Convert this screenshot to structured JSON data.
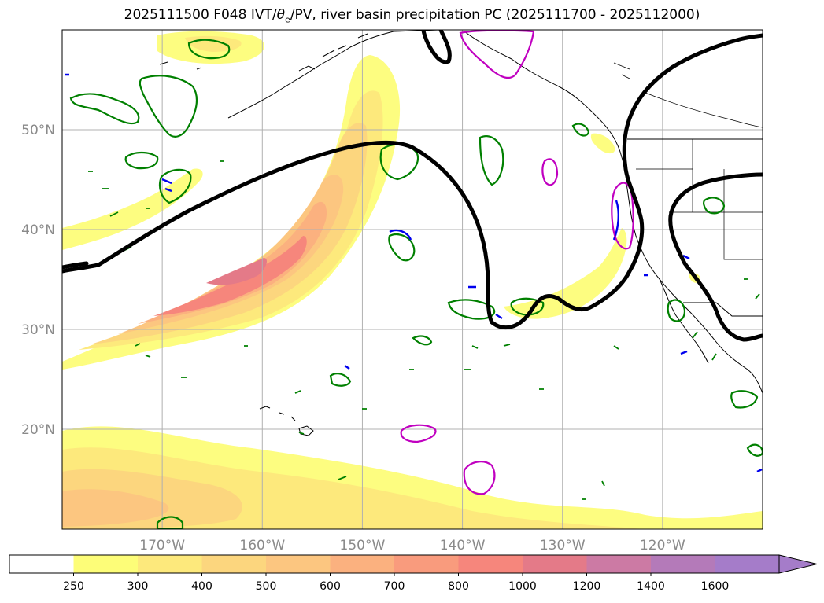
{
  "title": {
    "prefix": "2025111500 F048 IVT/",
    "theta": "θ",
    "theta_sub": "e",
    "suffix": "/PV, river basin precipitation PC (2025111700 - 2025112000)"
  },
  "map": {
    "lon_range": [
      -180,
      -110
    ],
    "lat_range": [
      10,
      60
    ],
    "lon_ticks": [
      -170,
      -160,
      -150,
      -140,
      -130,
      -120
    ],
    "lon_labels": [
      "170°W",
      "160°W",
      "150°W",
      "140°W",
      "130°W",
      "120°W"
    ],
    "lat_ticks": [
      20,
      30,
      40,
      50
    ],
    "lat_labels": [
      "20°N",
      "30°N",
      "40°N",
      "50°N"
    ],
    "grid": true
  },
  "colorbar": {
    "levels": [
      "250",
      "300",
      "400",
      "500",
      "600",
      "700",
      "800",
      "1000",
      "1200",
      "1400",
      "1600"
    ],
    "colors": [
      "#ffffff",
      "#fdfd78",
      "#fde97c",
      "#fcd67e",
      "#fcc680",
      "#fbb17f",
      "#f99b7d",
      "#f6867c",
      "#e47a88",
      "#cc7aa4",
      "#b47ab9",
      "#a57cc9"
    ],
    "extend": "max"
  },
  "colors": {
    "ivt_light": "#fdfd80",
    "ivt_mid": "#fcd67e",
    "ivt_strong": "#f99b7d",
    "ivt_peak": "#f0807c",
    "ivt_core": "#d978a0",
    "pv_contour": "#000000",
    "theta_contour": "#008000",
    "precip_contour": "#c000c0",
    "blue_contour": "#0000ee",
    "coast": "#000000",
    "grid": "#b0b0b0"
  }
}
